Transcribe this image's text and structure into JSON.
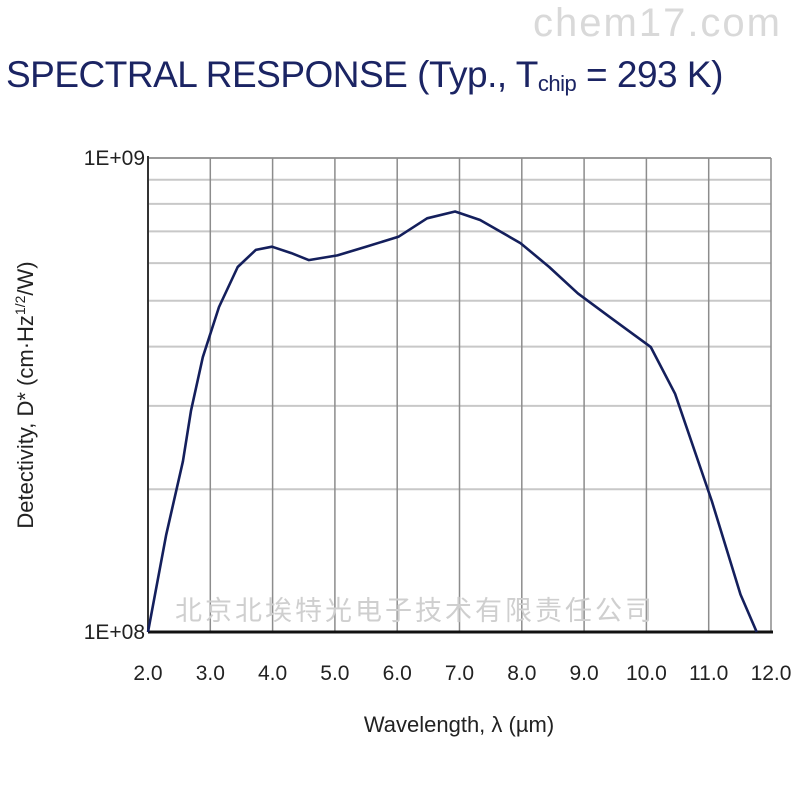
{
  "title": {
    "main": "SPECTRAL RESPONSE (Typ., T",
    "sub": "chip",
    "tail": " = 293 K)"
  },
  "watermarks": [
    "chem17.com",
    "北京北埃特光电子技术有限责任公司"
  ],
  "colors": {
    "line": "#141f5c",
    "title": "#1b2463",
    "grid": "#c8c8c8",
    "vgrid": "#8c8c8c"
  },
  "chart_data": {
    "type": "line",
    "title": "SPECTRAL RESPONSE (Typ., Tchip = 293 K)",
    "xlabel": "Wavelength, λ (µm)",
    "ylabel": "Detectivity, D* (cm·Hz1/2/W)",
    "xlim": [
      2.0,
      12.0
    ],
    "ylim": [
      100000000.0,
      1000000000.0
    ],
    "yscale": "log",
    "grid": true,
    "xticks": [
      "2.0",
      "3.0",
      "4.0",
      "5.0",
      "6.0",
      "7.0",
      "8.0",
      "9.0",
      "10.0",
      "11.0",
      "12.0"
    ],
    "yticks": [
      "1E+08",
      "1E+09"
    ],
    "series": [
      {
        "x": [
          2.0,
          2.29,
          2.56,
          2.69,
          2.88,
          3.14,
          3.44,
          3.73,
          3.99,
          4.3,
          4.58,
          5.04,
          5.5,
          6.02,
          6.48,
          6.93,
          7.33,
          7.98,
          8.44,
          8.9,
          9.42,
          10.07,
          10.46,
          11.05,
          11.51,
          11.77
        ],
        "y": [
          100000000.0,
          160000000.0,
          229000000.0,
          293000000.0,
          380000000.0,
          485000000.0,
          589000000.0,
          640000000.0,
          650000000.0,
          630000000.0,
          609000000.0,
          623000000.0,
          650000000.0,
          682000000.0,
          746000000.0,
          771000000.0,
          740000000.0,
          661000000.0,
          589000000.0,
          518000000.0,
          461000000.0,
          399000000.0,
          318000000.0,
          189000000.0,
          120000000.0,
          100000000.0
        ]
      }
    ]
  }
}
